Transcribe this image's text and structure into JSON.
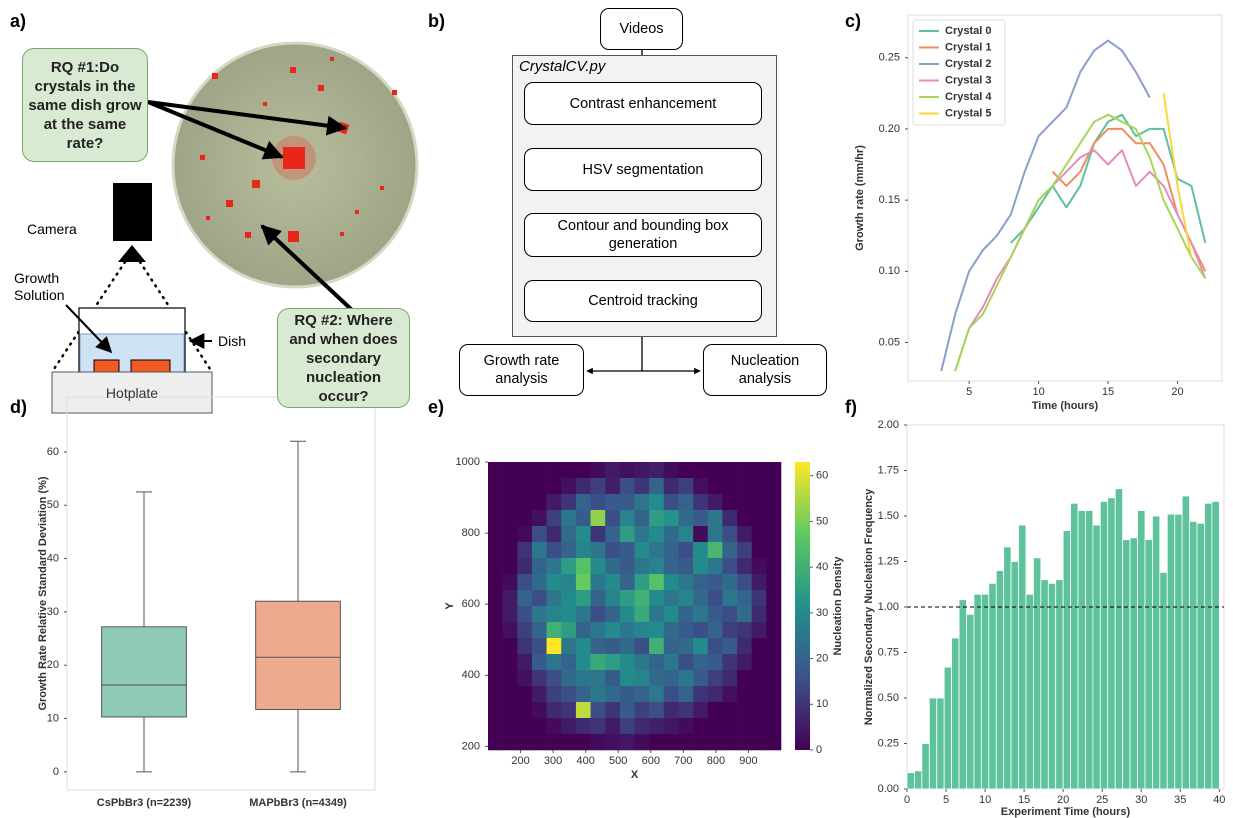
{
  "panel_a": {
    "label": "a)",
    "rq1": "RQ #1:Do crystals in the same dish grow at the same rate?",
    "rq2": "RQ #2: Where and when does secondary nucleation occur?",
    "camera": "Camera",
    "growth_solution": "Growth Solution",
    "dish": "Dish",
    "hotplate": "Hotplate"
  },
  "panel_b": {
    "label": "b)",
    "input": "Videos",
    "container": "CrystalCV.py",
    "steps": [
      "Contrast enhancement",
      "HSV segmentation",
      "Contour and bounding box generation",
      "Centroid tracking"
    ],
    "outputs": [
      "Growth rate analysis",
      "Nucleation analysis"
    ]
  },
  "chart_data": [
    {
      "type": "line",
      "label": "c)",
      "x_label": "Time (hours)",
      "y_label": "Growth rate (mm/hr)",
      "x": [
        3,
        4,
        5,
        6,
        7,
        8,
        9,
        10,
        11,
        12,
        13,
        14,
        15,
        16,
        17,
        18,
        19,
        20,
        21,
        22
      ],
      "series": [
        {
          "name": "Crystal 0",
          "color": "#5fbf9f",
          "values": [
            null,
            null,
            null,
            null,
            null,
            0.12,
            0.13,
            0.145,
            0.16,
            0.145,
            0.16,
            0.19,
            0.205,
            0.21,
            0.195,
            0.2,
            0.2,
            0.165,
            0.16,
            0.12
          ]
        },
        {
          "name": "Crystal 1",
          "color": "#f08c62",
          "values": [
            null,
            null,
            null,
            null,
            null,
            null,
            null,
            null,
            0.17,
            0.16,
            0.17,
            0.19,
            0.2,
            0.2,
            0.19,
            0.19,
            0.175,
            0.14,
            0.12,
            0.1
          ]
        },
        {
          "name": "Crystal 2",
          "color": "#8a9fcb",
          "values": [
            0.03,
            0.07,
            0.1,
            0.115,
            0.125,
            0.14,
            0.17,
            0.195,
            0.205,
            0.215,
            0.24,
            0.255,
            0.262,
            0.255,
            0.24,
            0.222,
            null,
            null,
            null,
            null
          ]
        },
        {
          "name": "Crystal 3",
          "color": "#e68ac0",
          "values": [
            null,
            0.03,
            0.06,
            0.075,
            0.095,
            0.11,
            0.13,
            0.15,
            0.16,
            0.17,
            0.18,
            0.185,
            0.175,
            0.185,
            0.16,
            0.17,
            0.16,
            0.14,
            0.12,
            0.095
          ]
        },
        {
          "name": "Crystal 4",
          "color": "#a6d757",
          "values": [
            null,
            0.03,
            0.06,
            0.07,
            0.09,
            0.11,
            0.13,
            0.15,
            0.16,
            0.175,
            0.19,
            0.205,
            0.21,
            0.205,
            0.2,
            0.18,
            0.15,
            0.13,
            0.11,
            0.095
          ]
        },
        {
          "name": "Crystal 5",
          "color": "#f7d83a",
          "values": [
            null,
            null,
            null,
            null,
            null,
            null,
            null,
            null,
            null,
            null,
            null,
            null,
            null,
            null,
            null,
            null,
            0.225,
            0.16,
            0.11,
            null
          ]
        }
      ],
      "xlim": [
        0.6,
        23.2
      ],
      "ylim": [
        0.023,
        0.28
      ],
      "xticks": [
        5,
        10,
        15,
        20
      ],
      "yticks": [
        0.05,
        {
          "value": 0.1,
          "label": "0.10"
        },
        0.15,
        {
          "value": 0.2,
          "label": "0.20"
        },
        0.25
      ],
      "legend": "upper-left"
    },
    {
      "type": "box",
      "label": "d)",
      "y_label": "Growth Rate Relative Standard Deviation (%)",
      "categories": [
        "CsPbBr3 (n=2239)",
        "MAPbBr3 (n=4349)"
      ],
      "boxes": [
        {
          "min": 0,
          "q1": 10.3,
          "median": 16.3,
          "q3": 27.2,
          "max": 52.5,
          "color": "#8fcab5"
        },
        {
          "min": 0,
          "q1": 11.7,
          "median": 21.5,
          "q3": 32,
          "max": 62,
          "color": "#eeaa8e"
        }
      ],
      "ylim": [
        -3.4,
        70.3
      ],
      "yticks": [
        0,
        10,
        20,
        30,
        40,
        50,
        60
      ]
    },
    {
      "type": "heatmap",
      "label": "e)",
      "x_label": "X",
      "y_label": "Y",
      "colorbar_label": "Nucleation Density",
      "colormap": "viridis",
      "xlim": [
        100,
        1000
      ],
      "ylim": [
        190,
        1000
      ],
      "clim": [
        0,
        63
      ],
      "xticks": [
        200,
        300,
        400,
        500,
        600,
        700,
        800,
        900
      ],
      "yticks": [
        200,
        400,
        600,
        800,
        1000
      ],
      "cticks": [
        0,
        10,
        20,
        30,
        40,
        50,
        60
      ],
      "values": [
        [
          0,
          0,
          0,
          0,
          0,
          0,
          0,
          2,
          5,
          3,
          4,
          6,
          2,
          0,
          0,
          0,
          0,
          0,
          0,
          0
        ],
        [
          0,
          0,
          0,
          0,
          0,
          3,
          8,
          12,
          6,
          15,
          10,
          20,
          8,
          12,
          3,
          0,
          0,
          0,
          0,
          0
        ],
        [
          0,
          0,
          0,
          0,
          5,
          10,
          20,
          15,
          18,
          18,
          25,
          30,
          15,
          20,
          10,
          5,
          0,
          0,
          0,
          0
        ],
        [
          0,
          0,
          0,
          3,
          12,
          25,
          18,
          52,
          15,
          28,
          20,
          35,
          32,
          22,
          18,
          25,
          8,
          0,
          0,
          0
        ],
        [
          0,
          0,
          2,
          15,
          8,
          22,
          30,
          10,
          20,
          35,
          25,
          30,
          22,
          28,
          2,
          25,
          15,
          5,
          0,
          0
        ],
        [
          0,
          0,
          10,
          25,
          15,
          20,
          28,
          25,
          15,
          18,
          30,
          25,
          20,
          15,
          30,
          42,
          20,
          12,
          0,
          0
        ],
        [
          0,
          0,
          8,
          20,
          25,
          35,
          45,
          30,
          22,
          18,
          25,
          28,
          20,
          18,
          30,
          25,
          15,
          8,
          2,
          0
        ],
        [
          0,
          2,
          15,
          22,
          30,
          28,
          48,
          25,
          30,
          20,
          35,
          45,
          30,
          25,
          20,
          18,
          22,
          15,
          5,
          0
        ],
        [
          0,
          5,
          20,
          15,
          25,
          30,
          35,
          20,
          28,
          35,
          40,
          30,
          25,
          28,
          22,
          15,
          25,
          20,
          10,
          0
        ],
        [
          0,
          5,
          15,
          25,
          28,
          30,
          25,
          15,
          20,
          30,
          38,
          25,
          30,
          20,
          25,
          18,
          15,
          22,
          8,
          0
        ],
        [
          0,
          3,
          12,
          20,
          40,
          35,
          20,
          25,
          30,
          25,
          28,
          30,
          22,
          18,
          15,
          20,
          12,
          10,
          5,
          0
        ],
        [
          0,
          0,
          10,
          15,
          63,
          25,
          30,
          20,
          18,
          22,
          15,
          40,
          20,
          22,
          30,
          15,
          18,
          8,
          0,
          0
        ],
        [
          0,
          0,
          5,
          18,
          25,
          20,
          30,
          38,
          35,
          30,
          25,
          20,
          25,
          15,
          20,
          18,
          10,
          5,
          0,
          0
        ],
        [
          0,
          0,
          3,
          10,
          15,
          22,
          25,
          25,
          18,
          30,
          28,
          22,
          20,
          25,
          18,
          12,
          8,
          0,
          0,
          0
        ],
        [
          0,
          0,
          0,
          5,
          12,
          15,
          20,
          25,
          22,
          18,
          20,
          25,
          15,
          20,
          10,
          8,
          3,
          0,
          0,
          0
        ],
        [
          0,
          0,
          0,
          2,
          8,
          10,
          57,
          15,
          10,
          18,
          12,
          15,
          8,
          10,
          5,
          0,
          0,
          0,
          0,
          0
        ],
        [
          0,
          0,
          0,
          0,
          2,
          5,
          8,
          10,
          5,
          12,
          8,
          6,
          4,
          2,
          0,
          0,
          0,
          0,
          0,
          0
        ],
        [
          0,
          0,
          0,
          0,
          0,
          0,
          0,
          2,
          3,
          4,
          2,
          0,
          0,
          0,
          0,
          0,
          0,
          0,
          0,
          0
        ]
      ]
    },
    {
      "type": "histogram",
      "label": "f)",
      "x_label": "Experiment Time (hours)",
      "y_label": "Normalized Secondary Nucleation Frequency",
      "color": "#5ec39a",
      "bins": [
        0,
        0.95,
        1.9,
        2.86,
        3.81,
        4.76,
        5.71,
        6.67,
        7.62,
        8.57,
        9.52,
        10.48,
        11.43,
        12.38,
        13.33,
        14.29,
        15.24,
        16.19,
        17.14,
        18.1,
        19.05,
        20,
        20.95,
        21.9,
        22.86,
        23.81,
        24.76,
        25.71,
        26.67,
        27.62,
        28.57,
        29.52,
        30.48,
        31.43,
        32.38,
        33.33,
        34.29,
        35.24,
        36.19,
        37.14,
        38.1,
        39.05,
        40
      ],
      "values": [
        0.09,
        0.1,
        0.25,
        0.5,
        0.5,
        0.67,
        0.83,
        1.04,
        0.96,
        1.07,
        1.07,
        1.13,
        1.2,
        1.33,
        1.25,
        1.45,
        1.07,
        1.27,
        1.15,
        1.13,
        1.15,
        1.42,
        1.57,
        1.53,
        1.53,
        1.45,
        1.58,
        1.6,
        1.65,
        1.37,
        1.38,
        1.53,
        1.37,
        1.5,
        1.19,
        1.51,
        1.51,
        1.61,
        1.47,
        1.46,
        1.57,
        1.58
      ],
      "hline": 1.0,
      "xlim": [
        0,
        40.6
      ],
      "ylim": [
        0,
        2
      ],
      "xticks": [
        0,
        5,
        10,
        15,
        20,
        25,
        30,
        35,
        40
      ],
      "yticks": [
        {
          "value": 0,
          "label": "0.00"
        },
        0.25,
        {
          "value": 0.5,
          "label": "0.50"
        },
        0.75,
        {
          "value": 1,
          "label": "1.00"
        },
        1.25,
        {
          "value": 1.5,
          "label": "1.50"
        },
        1.75,
        {
          "value": 2,
          "label": "2.00"
        }
      ]
    }
  ]
}
